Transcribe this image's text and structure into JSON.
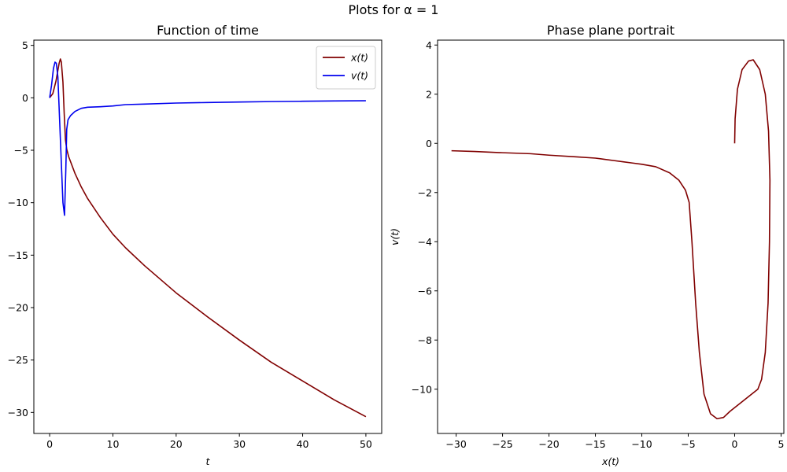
{
  "figure": {
    "suptitle": "Plots for α = 1"
  },
  "chart_data": [
    {
      "type": "line",
      "title": "Function of time",
      "xlabel": "t",
      "ylabel": "",
      "xlim": [
        -2.5,
        52.5
      ],
      "ylim": [
        -32,
        5.5
      ],
      "xticks": [
        0,
        10,
        20,
        30,
        40,
        50
      ],
      "yticks": [
        5,
        0,
        -5,
        -10,
        -15,
        -20,
        -25,
        -30
      ],
      "grid": false,
      "legend_position": "top-right",
      "series": [
        {
          "name": "x(t)",
          "color": "#800000",
          "points": [
            [
              0,
              0
            ],
            [
              0.5,
              0.4
            ],
            [
              1,
              1.6
            ],
            [
              1.5,
              3.3
            ],
            [
              1.7,
              3.7
            ],
            [
              1.85,
              3.4
            ],
            [
              2.1,
              1.5
            ],
            [
              2.3,
              -1.5
            ],
            [
              2.5,
              -4.0
            ],
            [
              2.7,
              -4.9
            ],
            [
              3,
              -5.6
            ],
            [
              4,
              -7.2
            ],
            [
              5,
              -8.5
            ],
            [
              6,
              -9.6
            ],
            [
              8,
              -11.4
            ],
            [
              10,
              -13.0
            ],
            [
              12,
              -14.3
            ],
            [
              15,
              -16.0
            ],
            [
              20,
              -18.6
            ],
            [
              25,
              -20.9
            ],
            [
              30,
              -23.1
            ],
            [
              35,
              -25.2
            ],
            [
              40,
              -27.0
            ],
            [
              45,
              -28.8
            ],
            [
              50,
              -30.4
            ]
          ]
        },
        {
          "name": "v(t)",
          "color": "#0000ee",
          "points": [
            [
              0,
              0
            ],
            [
              0.3,
              1.2
            ],
            [
              0.6,
              2.8
            ],
            [
              0.85,
              3.4
            ],
            [
              1.05,
              3.3
            ],
            [
              1.3,
              2.0
            ],
            [
              1.6,
              -2.5
            ],
            [
              1.9,
              -7.0
            ],
            [
              2.1,
              -10.0
            ],
            [
              2.35,
              -11.2
            ],
            [
              2.55,
              -7.0
            ],
            [
              2.7,
              -3.0
            ],
            [
              2.9,
              -2.1
            ],
            [
              3.3,
              -1.7
            ],
            [
              4,
              -1.3
            ],
            [
              5,
              -1.0
            ],
            [
              6,
              -0.9
            ],
            [
              8,
              -0.85
            ],
            [
              10,
              -0.78
            ],
            [
              12,
              -0.65
            ],
            [
              15,
              -0.6
            ],
            [
              20,
              -0.5
            ],
            [
              25,
              -0.45
            ],
            [
              30,
              -0.4
            ],
            [
              35,
              -0.36
            ],
            [
              40,
              -0.33
            ],
            [
              45,
              -0.3
            ],
            [
              50,
              -0.28
            ]
          ]
        }
      ]
    },
    {
      "type": "line",
      "title": "Phase plane portrait",
      "xlabel": "x(t)",
      "ylabel": "v(t)",
      "xlim": [
        -32,
        5.3
      ],
      "ylim": [
        -11.8,
        4.2
      ],
      "xticks": [
        -30,
        -25,
        -20,
        -15,
        -10,
        -5,
        0,
        5
      ],
      "yticks": [
        4,
        2,
        0,
        -2,
        -4,
        -6,
        -8,
        -10
      ],
      "grid": false,
      "series": [
        {
          "name": "",
          "color": "#800000",
          "points": [
            [
              0,
              0
            ],
            [
              0.05,
              1.0
            ],
            [
              0.3,
              2.2
            ],
            [
              0.8,
              3.0
            ],
            [
              1.5,
              3.35
            ],
            [
              2.0,
              3.4
            ],
            [
              2.7,
              3.0
            ],
            [
              3.3,
              2.0
            ],
            [
              3.65,
              0.5
            ],
            [
              3.8,
              -1.5
            ],
            [
              3.75,
              -4.0
            ],
            [
              3.6,
              -6.5
            ],
            [
              3.3,
              -8.5
            ],
            [
              2.9,
              -9.6
            ],
            [
              2.5,
              -10.0
            ],
            [
              1.5,
              -10.3
            ],
            [
              0.5,
              -10.6
            ],
            [
              -0.5,
              -10.9
            ],
            [
              -1.2,
              -11.15
            ],
            [
              -1.9,
              -11.2
            ],
            [
              -2.6,
              -11.0
            ],
            [
              -3.3,
              -10.2
            ],
            [
              -3.8,
              -8.5
            ],
            [
              -4.2,
              -6.5
            ],
            [
              -4.6,
              -4.0
            ],
            [
              -4.9,
              -2.4
            ],
            [
              -5.3,
              -1.9
            ],
            [
              -6,
              -1.5
            ],
            [
              -7,
              -1.2
            ],
            [
              -8.5,
              -0.95
            ],
            [
              -10,
              -0.85
            ],
            [
              -11,
              -0.8
            ],
            [
              -12,
              -0.75
            ],
            [
              -13,
              -0.7
            ],
            [
              -14,
              -0.65
            ],
            [
              -15,
              -0.6
            ],
            [
              -17,
              -0.55
            ],
            [
              -20,
              -0.48
            ],
            [
              -22,
              -0.42
            ],
            [
              -25,
              -0.38
            ],
            [
              -28,
              -0.33
            ],
            [
              -30.5,
              -0.3
            ]
          ]
        }
      ]
    }
  ]
}
